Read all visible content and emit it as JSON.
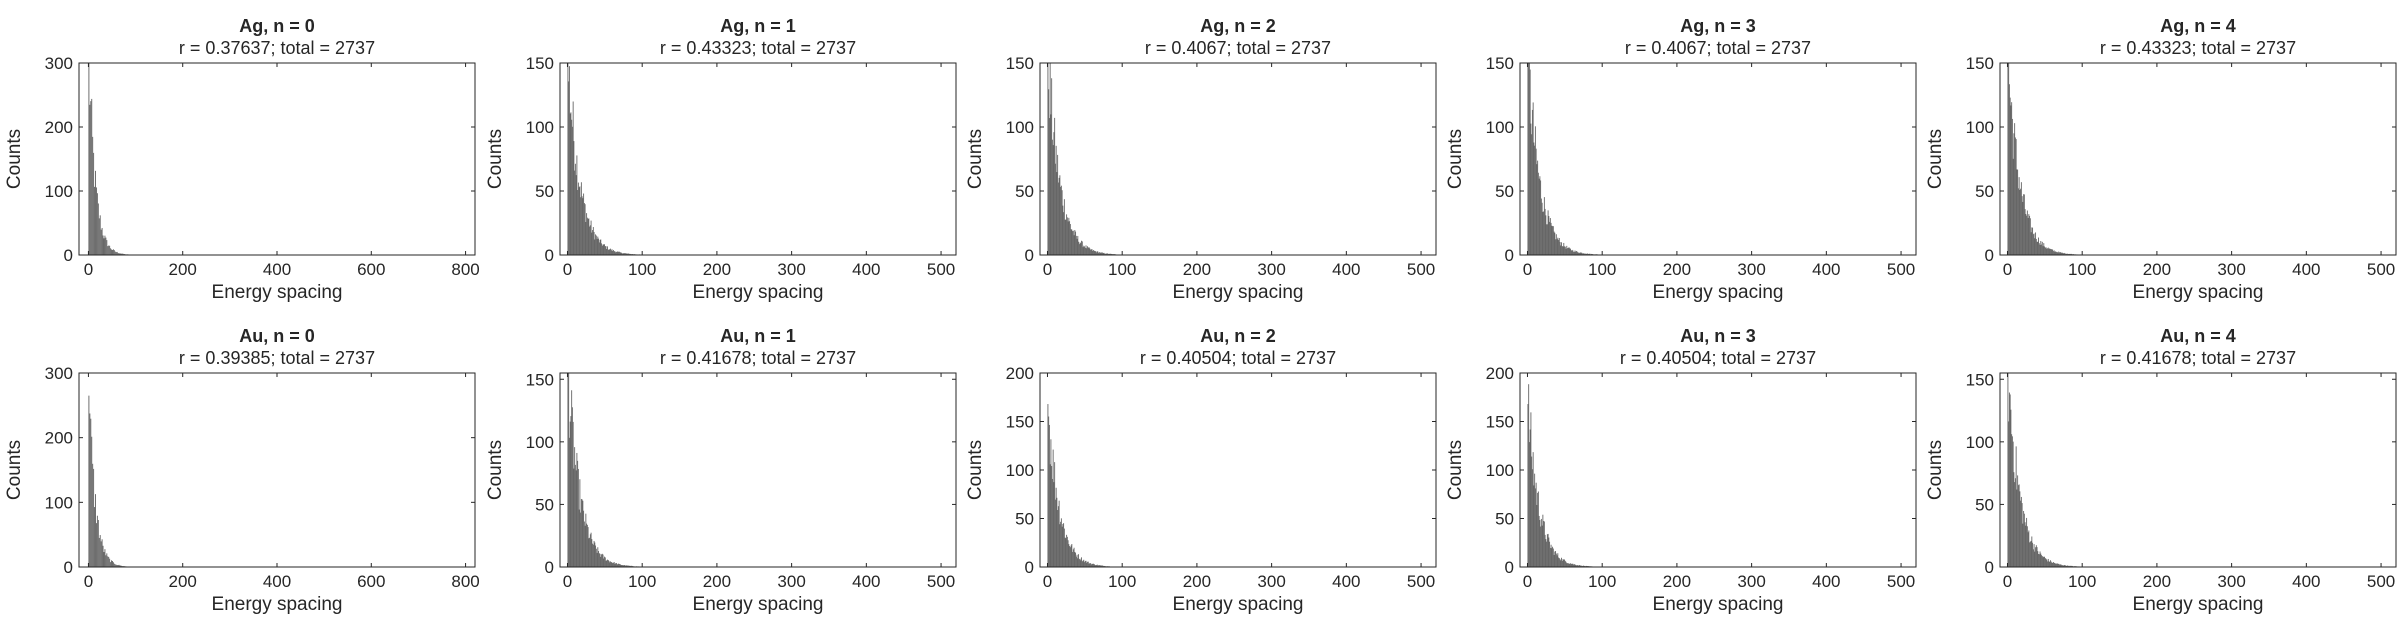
{
  "figure": {
    "background": "#ffffff"
  },
  "style": {
    "bar_color": "#666666",
    "axis_color": "#262626"
  },
  "chart_data": [
    {
      "type": "bar",
      "title": "Ag, n = 0",
      "subtitle": "r = 0.37637; total = 2737",
      "xlabel": "Energy spacing",
      "ylabel": "Counts",
      "xlim": [
        -20,
        820
      ],
      "ylim": [
        0,
        300
      ],
      "xticks": [
        0,
        200,
        400,
        600,
        800
      ],
      "yticks": [
        0,
        100,
        200,
        300
      ],
      "grid": false,
      "hist": {
        "bin_width": 2,
        "x_start": 0,
        "peak": 300,
        "decay": 14,
        "extent": 100
      }
    },
    {
      "type": "bar",
      "title": "Ag, n = 1",
      "subtitle": "r = 0.43323; total = 2737",
      "xlabel": "Energy spacing",
      "ylabel": "Counts",
      "xlim": [
        -10,
        520
      ],
      "ylim": [
        0,
        150
      ],
      "xticks": [
        0,
        100,
        200,
        300,
        400,
        500
      ],
      "yticks": [
        0,
        50,
        100,
        150
      ],
      "grid": false,
      "hist": {
        "bin_width": 1,
        "x_start": 0,
        "peak": 152,
        "decay": 16,
        "extent": 120
      }
    },
    {
      "type": "bar",
      "title": "Ag, n = 2",
      "subtitle": "r = 0.4067; total = 2737",
      "xlabel": "Energy spacing",
      "ylabel": "Counts",
      "xlim": [
        -10,
        520
      ],
      "ylim": [
        0,
        150
      ],
      "xticks": [
        0,
        100,
        200,
        300,
        400,
        500
      ],
      "yticks": [
        0,
        50,
        100,
        150
      ],
      "grid": false,
      "hist": {
        "bin_width": 1,
        "x_start": 0,
        "peak": 152,
        "decay": 16,
        "extent": 120
      }
    },
    {
      "type": "bar",
      "title": "Ag, n = 3",
      "subtitle": "r = 0.4067; total = 2737",
      "xlabel": "Energy spacing",
      "ylabel": "Counts",
      "xlim": [
        -10,
        520
      ],
      "ylim": [
        0,
        150
      ],
      "xticks": [
        0,
        100,
        200,
        300,
        400,
        500
      ],
      "yticks": [
        0,
        50,
        100,
        150
      ],
      "grid": false,
      "hist": {
        "bin_width": 1,
        "x_start": 0,
        "peak": 152,
        "decay": 16,
        "extent": 120
      }
    },
    {
      "type": "bar",
      "title": "Ag, n = 4",
      "subtitle": "r = 0.43323; total = 2737",
      "xlabel": "Energy spacing",
      "ylabel": "Counts",
      "xlim": [
        -10,
        520
      ],
      "ylim": [
        0,
        150
      ],
      "xticks": [
        0,
        100,
        200,
        300,
        400,
        500
      ],
      "yticks": [
        0,
        50,
        100,
        150
      ],
      "grid": false,
      "hist": {
        "bin_width": 1,
        "x_start": 0,
        "peak": 152,
        "decay": 16,
        "extent": 120
      }
    },
    {
      "type": "bar",
      "title": "Au, n = 0",
      "subtitle": "r = 0.39385; total = 2737",
      "xlabel": "Energy spacing",
      "ylabel": "Counts",
      "xlim": [
        -20,
        820
      ],
      "ylim": [
        0,
        300
      ],
      "xticks": [
        0,
        200,
        400,
        600,
        800
      ],
      "yticks": [
        0,
        100,
        200,
        300
      ],
      "grid": false,
      "hist": {
        "bin_width": 2,
        "x_start": 0,
        "peak": 265,
        "decay": 14,
        "extent": 100
      }
    },
    {
      "type": "bar",
      "title": "Au, n = 1",
      "subtitle": "r = 0.41678; total = 2737",
      "xlabel": "Energy spacing",
      "ylabel": "Counts",
      "xlim": [
        -10,
        520
      ],
      "ylim": [
        0,
        155
      ],
      "xticks": [
        0,
        100,
        200,
        300,
        400,
        500
      ],
      "yticks": [
        0,
        50,
        100,
        150
      ],
      "grid": false,
      "hist": {
        "bin_width": 1,
        "x_start": 0,
        "peak": 155,
        "decay": 16,
        "extent": 120
      }
    },
    {
      "type": "bar",
      "title": "Au, n = 2",
      "subtitle": "r = 0.40504; total = 2737",
      "xlabel": "Energy spacing",
      "ylabel": "Counts",
      "xlim": [
        -10,
        520
      ],
      "ylim": [
        0,
        200
      ],
      "xticks": [
        0,
        100,
        200,
        300,
        400,
        500
      ],
      "yticks": [
        0,
        50,
        100,
        150,
        200
      ],
      "grid": false,
      "hist": {
        "bin_width": 1,
        "x_start": 0,
        "peak": 168,
        "decay": 15,
        "extent": 120
      }
    },
    {
      "type": "bar",
      "title": "Au, n = 3",
      "subtitle": "r = 0.40504; total = 2737",
      "xlabel": "Energy spacing",
      "ylabel": "Counts",
      "xlim": [
        -10,
        520
      ],
      "ylim": [
        0,
        200
      ],
      "xticks": [
        0,
        100,
        200,
        300,
        400,
        500
      ],
      "yticks": [
        0,
        50,
        100,
        150,
        200
      ],
      "grid": false,
      "hist": {
        "bin_width": 1,
        "x_start": 0,
        "peak": 168,
        "decay": 15,
        "extent": 120
      }
    },
    {
      "type": "bar",
      "title": "Au, n = 4",
      "subtitle": "r = 0.41678; total = 2737",
      "xlabel": "Energy spacing",
      "ylabel": "Counts",
      "xlim": [
        -10,
        520
      ],
      "ylim": [
        0,
        155
      ],
      "xticks": [
        0,
        100,
        200,
        300,
        400,
        500
      ],
      "yticks": [
        0,
        50,
        100,
        150
      ],
      "grid": false,
      "hist": {
        "bin_width": 1,
        "x_start": 0,
        "peak": 155,
        "decay": 16,
        "extent": 120
      }
    }
  ]
}
